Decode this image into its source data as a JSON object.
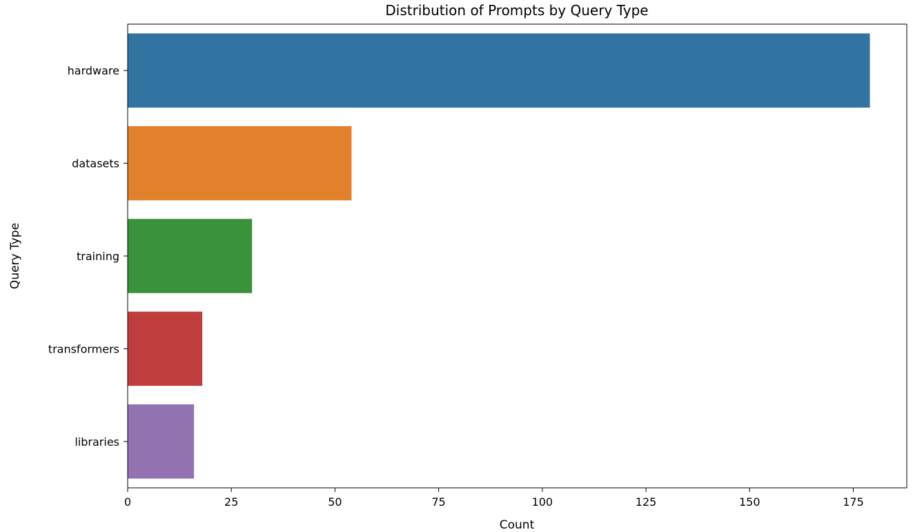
{
  "chart_data": {
    "type": "bar",
    "orientation": "horizontal",
    "title": "Distribution of Prompts by Query Type",
    "xlabel": "Count",
    "ylabel": "Query Type",
    "categories": [
      "hardware",
      "datasets",
      "training",
      "transformers",
      "libraries"
    ],
    "values": [
      179,
      54,
      30,
      18,
      16
    ],
    "colors": [
      "#3274a1",
      "#e1812c",
      "#3a923a",
      "#c03d3e",
      "#9372b2"
    ],
    "xlim": [
      0,
      187.9
    ],
    "xticks": [
      0,
      25,
      50,
      75,
      100,
      125,
      150,
      175
    ],
    "grid": false,
    "legend": "none"
  }
}
